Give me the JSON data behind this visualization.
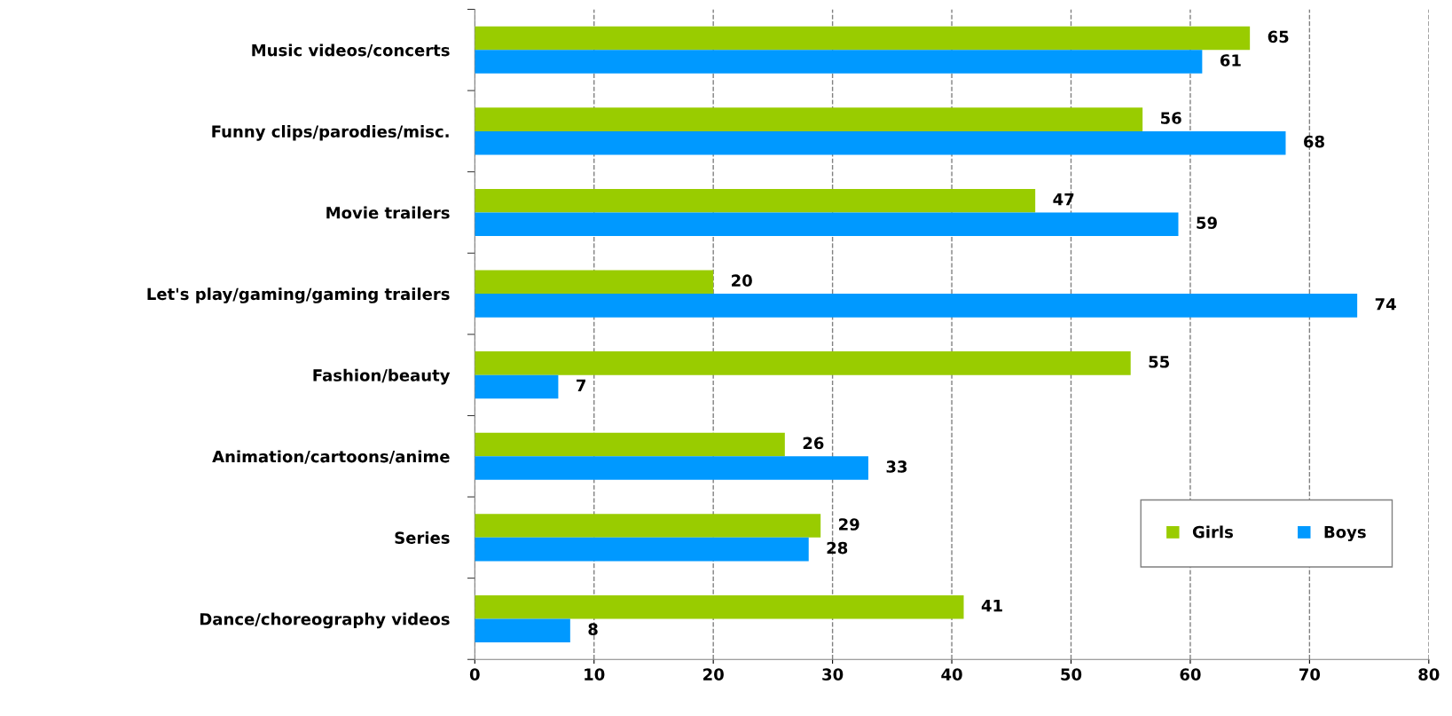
{
  "chart_data": {
    "type": "bar",
    "orientation": "horizontal",
    "categories": [
      "Music videos/concerts",
      "Funny clips/parodies/misc.",
      "Movie trailers",
      "Let's play/gaming/gaming trailers",
      "Fashion/beauty",
      "Animation/cartoons/anime",
      "Series",
      "Dance/choreography videos"
    ],
    "series": [
      {
        "name": "Girls",
        "color": "#99cc00",
        "values": [
          65,
          56,
          47,
          20,
          55,
          26,
          29,
          41
        ]
      },
      {
        "name": "Boys",
        "color": "#0099ff",
        "values": [
          61,
          68,
          59,
          74,
          7,
          33,
          28,
          8
        ]
      }
    ],
    "xlim": [
      0,
      80
    ],
    "xticks": [
      0,
      10,
      20,
      30,
      40,
      50,
      60,
      70,
      80
    ],
    "grid": "x",
    "legend": "bottom right",
    "data_labels": true
  }
}
